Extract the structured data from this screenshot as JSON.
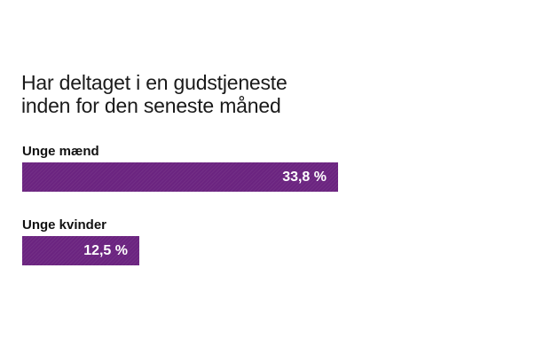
{
  "chart_data": {
    "type": "bar",
    "orientation": "horizontal",
    "title_lines": [
      "Har deltaget i en gudstjeneste",
      "inden for den seneste måned"
    ],
    "categories": [
      "Unge mænd",
      "Unge kvinder"
    ],
    "values": [
      33.8,
      12.5
    ],
    "value_labels": [
      "33,8 %",
      "12,5 %"
    ],
    "unit": "%",
    "xlim": [
      0,
      100
    ],
    "grid": false,
    "legend": "none",
    "bar_color": "#6b2480",
    "label_color": "#ffffff"
  }
}
